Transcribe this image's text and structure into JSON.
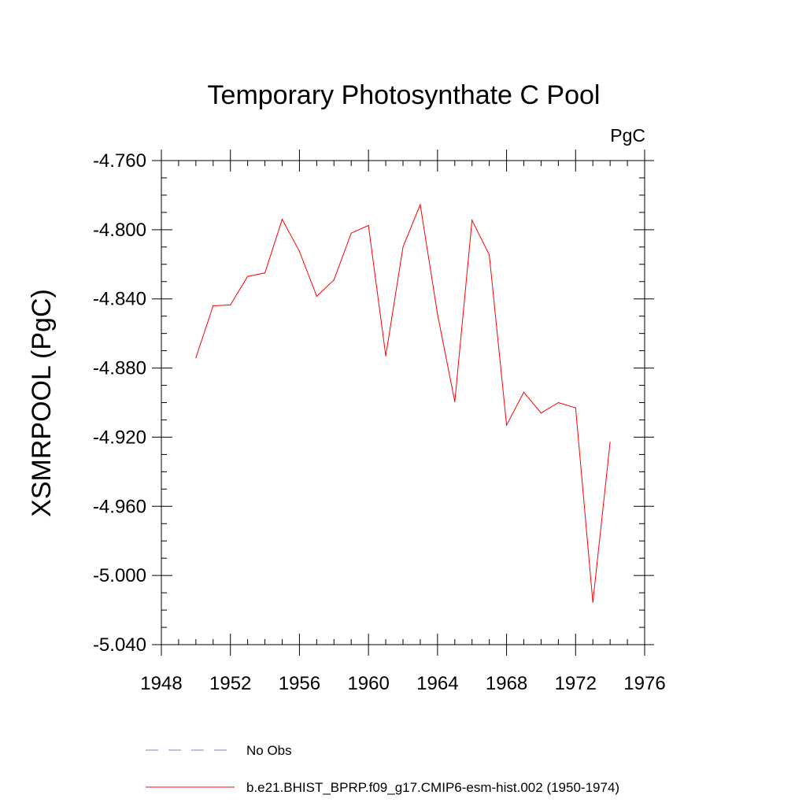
{
  "chart_data": {
    "type": "line",
    "title": "Temporary Photosynthate C Pool",
    "units_label": "PgC",
    "xlabel": "",
    "ylabel": "XSMRPOOL  (PgC)",
    "xlim": [
      1948,
      1976
    ],
    "ylim": [
      -5.04,
      -4.76
    ],
    "xticks": [
      1948,
      1952,
      1956,
      1960,
      1964,
      1968,
      1972,
      1976
    ],
    "xtick_labels": [
      "1948",
      "1952",
      "1956",
      "1960",
      "1964",
      "1968",
      "1972",
      "1976"
    ],
    "yticks": [
      -5.04,
      -5.0,
      -4.96,
      -4.92,
      -4.88,
      -4.84,
      -4.8,
      -4.76
    ],
    "ytick_labels": [
      "-5.040",
      "-5.000",
      "-4.960",
      "-4.920",
      "-4.880",
      "-4.840",
      "-4.800",
      "-4.760"
    ],
    "grid": false,
    "legend_placement": "bottom",
    "series": [
      {
        "name": "b.e21.BHIST_BPRP.f09_g17.CMIP6-esm-hist.002 (1950-1974)",
        "color": "#ff0000",
        "style": "solid",
        "x": [
          1950,
          1951,
          1952,
          1953,
          1954,
          1955,
          1956,
          1957,
          1958,
          1959,
          1960,
          1961,
          1962,
          1963,
          1964,
          1965,
          1966,
          1967,
          1968,
          1969,
          1970,
          1971,
          1972,
          1973,
          1974
        ],
        "y": [
          -4.874,
          -4.844,
          -4.8435,
          -4.827,
          -4.825,
          -4.794,
          -4.8125,
          -4.8385,
          -4.829,
          -4.802,
          -4.7975,
          -4.873,
          -4.81,
          -4.7855,
          -4.849,
          -4.8995,
          -4.7945,
          -4.8145,
          -4.913,
          -4.894,
          -4.906,
          -4.9,
          -4.903,
          -5.0155,
          -4.923
        ]
      }
    ],
    "legend": [
      {
        "label": "No Obs",
        "color": "#8080c0",
        "style": "dashed"
      },
      {
        "label": "b.e21.BHIST_BPRP.f09_g17.CMIP6-esm-hist.002 (1950-1974)",
        "color": "#ff0000",
        "style": "solid"
      }
    ]
  }
}
